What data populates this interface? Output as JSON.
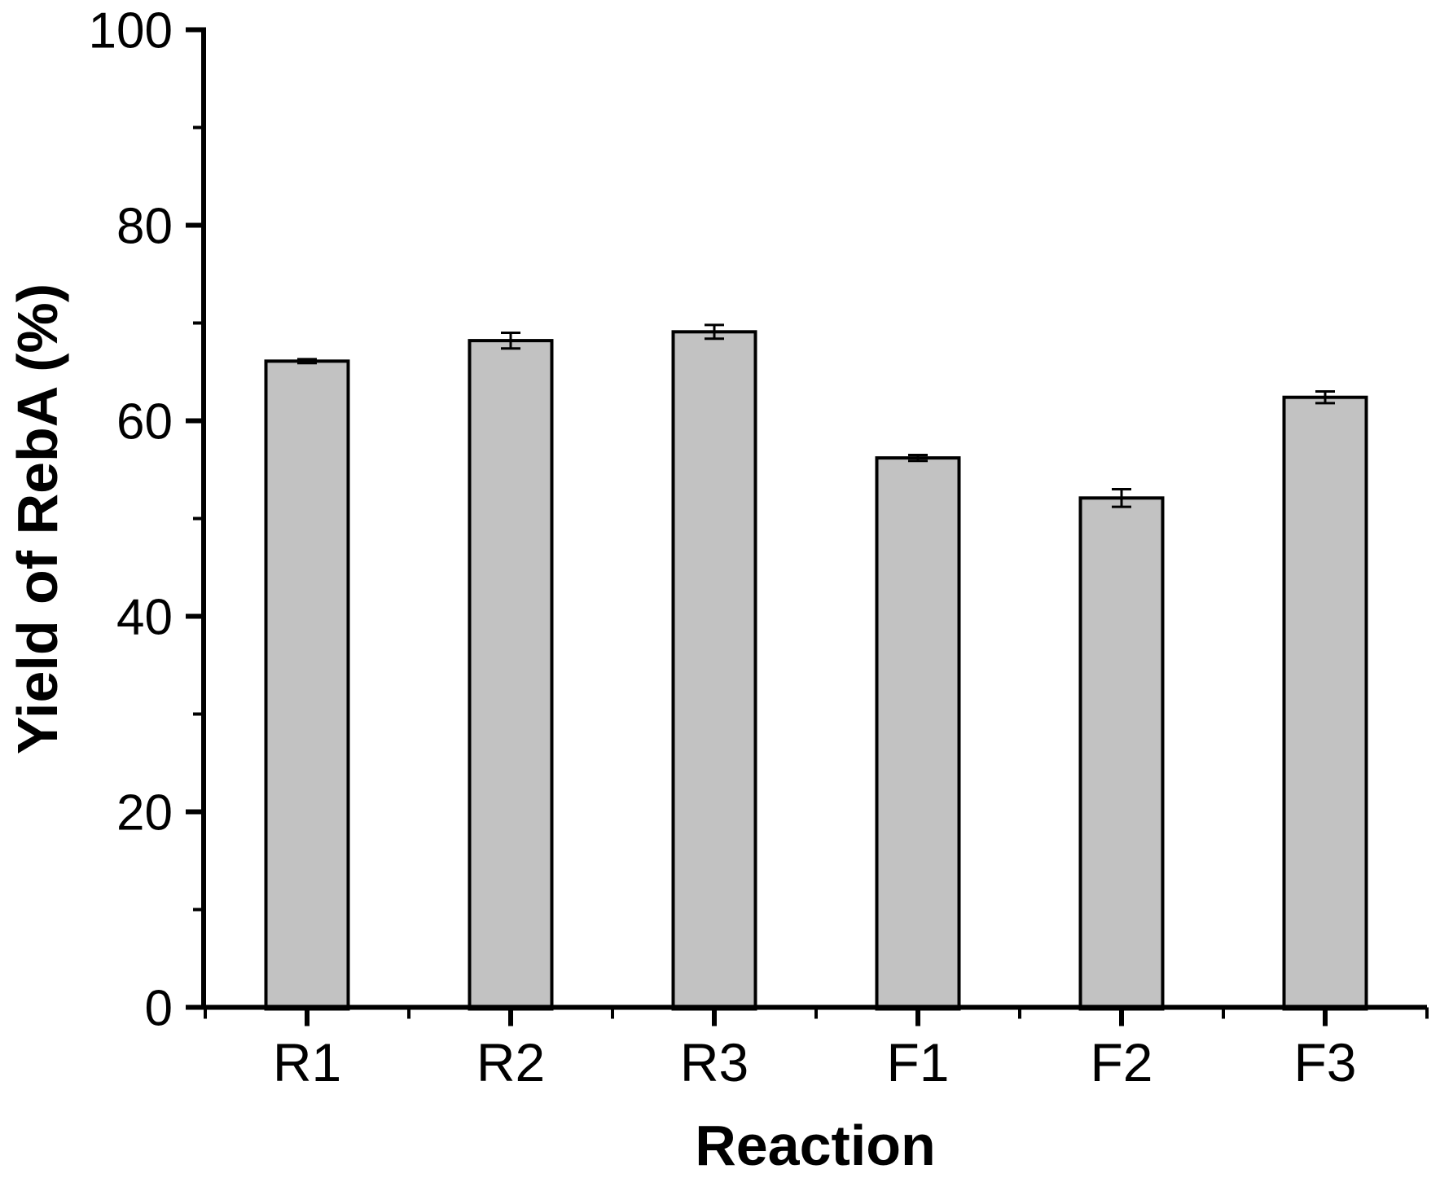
{
  "chart_data": {
    "type": "bar",
    "title": "",
    "categories": [
      "R1",
      "R2",
      "R3",
      "F1",
      "F2",
      "F3"
    ],
    "values": [
      66.1,
      68.2,
      69.1,
      56.2,
      52.1,
      62.4
    ],
    "error_bars": [
      0.2,
      0.8,
      0.7,
      0.3,
      0.9,
      0.6
    ],
    "xlabel": "Reaction",
    "ylabel": "Yield of RebA (%)",
    "ylim": [
      0,
      100
    ],
    "y_major_ticks": [
      0,
      20,
      40,
      60,
      80,
      100
    ],
    "y_minor_ticks": [
      10,
      30,
      50,
      70,
      90
    ],
    "grid": false,
    "legend": "none",
    "bar_fill_color": "#c2c2c2",
    "bar_border_color": "#000000",
    "error_bar_color": "#000000",
    "axis_color": "#000000",
    "background_color": "#ffffff"
  }
}
